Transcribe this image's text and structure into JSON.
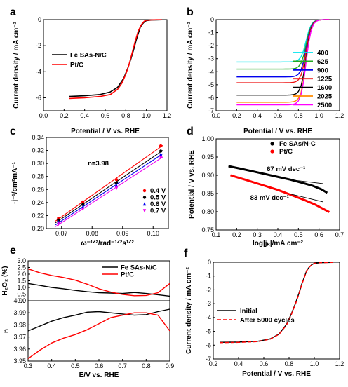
{
  "chart_data": [
    {
      "panel": "a",
      "type": "line",
      "xlabel": "Potential / V vs. RHE",
      "ylabel": "Current density / mA cm⁻²",
      "xlim": [
        0.0,
        1.2
      ],
      "ylim": [
        -7,
        0
      ],
      "xticks": [
        0.0,
        0.2,
        0.4,
        0.6,
        0.8,
        1.0,
        1.2
      ],
      "yticks": [
        -6,
        -4,
        -2,
        0
      ],
      "legend_position": "upper-left",
      "series": [
        {
          "name": "Fe SAs-N/C",
          "color": "#000000",
          "x": [
            0.25,
            0.4,
            0.55,
            0.65,
            0.72,
            0.78,
            0.82,
            0.85,
            0.88,
            0.9,
            0.92,
            0.94,
            0.96,
            0.98,
            1.0,
            1.05,
            1.1,
            1.15
          ],
          "y": [
            -5.9,
            -5.85,
            -5.75,
            -5.55,
            -5.2,
            -4.5,
            -3.7,
            -3.0,
            -2.2,
            -1.6,
            -1.1,
            -0.6,
            -0.35,
            -0.18,
            -0.08,
            -0.03,
            -0.02,
            -0.01
          ]
        },
        {
          "name": "Pt/C",
          "color": "#ff0000",
          "x": [
            0.25,
            0.4,
            0.55,
            0.65,
            0.72,
            0.76,
            0.8,
            0.83,
            0.86,
            0.89,
            0.92,
            0.95,
            0.98,
            1.0,
            1.05,
            1.1,
            1.15
          ],
          "y": [
            -6.05,
            -6.0,
            -5.9,
            -5.75,
            -5.35,
            -4.9,
            -4.2,
            -3.5,
            -2.6,
            -1.7,
            -0.9,
            -0.4,
            -0.12,
            -0.05,
            -0.02,
            -0.01,
            -0.01
          ]
        }
      ]
    },
    {
      "panel": "b",
      "type": "line",
      "xlabel": "Potential / V vs. RHE",
      "ylabel": "Current density / mA cm⁻²",
      "xlim": [
        0.0,
        1.2
      ],
      "ylim": [
        -7,
        0
      ],
      "xticks": [
        0.0,
        0.2,
        0.4,
        0.6,
        0.8,
        1.0,
        1.2
      ],
      "yticks": [
        -7,
        -6,
        -5,
        -4,
        -3,
        -2,
        -1,
        0
      ],
      "legend_position": "right",
      "series": [
        {
          "name": "400",
          "color": "#00e5ee",
          "limit": -3.25
        },
        {
          "name": "625",
          "color": "#22aa22",
          "limit": -3.8
        },
        {
          "name": "900",
          "color": "#0000ee",
          "limit": -4.4
        },
        {
          "name": "1225",
          "color": "#ee1111",
          "limit": -4.85
        },
        {
          "name": "1600",
          "color": "#000000",
          "limit": -5.8
        },
        {
          "name": "2025",
          "color": "#ff8c00",
          "limit": -6.35
        },
        {
          "name": "2500",
          "color": "#ff00ff",
          "limit": -6.55
        }
      ]
    },
    {
      "panel": "c",
      "type": "scatter",
      "xlabel": "ω⁻¹ᐟ²/rad⁻¹ᐟ²s¹ᐟ²",
      "ylabel": "-j⁻¹/cm²mA⁻¹",
      "xlim": [
        0.065,
        0.105
      ],
      "ylim": [
        0.2,
        0.34
      ],
      "xticks": [
        0.07,
        0.08,
        0.09,
        0.1
      ],
      "yticks": [
        0.2,
        0.22,
        0.24,
        0.26,
        0.28,
        0.3,
        0.32,
        0.34
      ],
      "x": [
        0.069,
        0.077,
        0.088,
        0.1025
      ],
      "annotation": "n=3.98",
      "legend_position": "lower-right",
      "series": [
        {
          "name": "0.4 V",
          "color": "#ff0000",
          "marker": "circle",
          "y": [
            0.216,
            0.241,
            0.275,
            0.327
          ]
        },
        {
          "name": "0.5 V",
          "color": "#000000",
          "marker": "circle",
          "y": [
            0.213,
            0.237,
            0.27,
            0.319
          ]
        },
        {
          "name": "0.6 V",
          "color": "#0000ee",
          "marker": "triangle",
          "y": [
            0.21,
            0.233,
            0.266,
            0.314
          ]
        },
        {
          "name": "0.7 V",
          "color": "#ee00ee",
          "marker": "triangle-down",
          "y": [
            0.207,
            0.23,
            0.262,
            0.309
          ]
        }
      ]
    },
    {
      "panel": "d",
      "type": "line",
      "xlabel": "log|jₖ|/mA cm⁻²",
      "ylabel": "Potential / V vs. RHE",
      "xlim": [
        0.1,
        0.7
      ],
      "ylim": [
        0.75,
        1.0
      ],
      "xticks": [
        0.1,
        0.2,
        0.3,
        0.4,
        0.5,
        0.6,
        0.7
      ],
      "yticks": [
        0.75,
        0.8,
        0.85,
        0.9,
        0.95,
        1.0
      ],
      "legend_position": "upper-right",
      "annotations": [
        "67 mV dec⁻¹",
        "83 mV dec⁻¹"
      ],
      "series": [
        {
          "name": "Fe SAs/N-C",
          "color": "#000000",
          "x": [
            0.16,
            0.22,
            0.3,
            0.38,
            0.46,
            0.52,
            0.57,
            0.61,
            0.64
          ],
          "y": [
            0.925,
            0.918,
            0.908,
            0.898,
            0.888,
            0.879,
            0.871,
            0.862,
            0.852
          ]
        },
        {
          "name": "Pt/C",
          "color": "#ff0000",
          "x": [
            0.17,
            0.24,
            0.32,
            0.4,
            0.47,
            0.53,
            0.58,
            0.62,
            0.65
          ],
          "y": [
            0.9,
            0.888,
            0.874,
            0.86,
            0.845,
            0.832,
            0.82,
            0.808,
            0.799
          ]
        }
      ]
    },
    {
      "panel": "e",
      "type": "line",
      "xlabel": "E/V vs. RHE",
      "ylabel_top": "H₂O₂ (%)",
      "ylabel_bottom": "n",
      "xlim": [
        0.3,
        0.9
      ],
      "ylim_top": [
        0.0,
        3.0
      ],
      "ylim_bottom": [
        3.95,
        4.0
      ],
      "xticks": [
        0.3,
        0.4,
        0.5,
        0.6,
        0.7,
        0.8,
        0.9
      ],
      "yticks_top": [
        0.0,
        0.5,
        1.0,
        1.5,
        2.0,
        2.5,
        3.0
      ],
      "yticks_bottom": [
        3.95,
        3.96,
        3.97,
        3.98,
        3.99,
        4.0
      ],
      "legend_position": "upper-right",
      "series": [
        {
          "name": "Fe SAs-N/C",
          "color": "#000000",
          "x": [
            0.3,
            0.35,
            0.4,
            0.45,
            0.5,
            0.55,
            0.6,
            0.65,
            0.7,
            0.75,
            0.8,
            0.85,
            0.9
          ],
          "h2o2": [
            1.3,
            1.15,
            1.0,
            0.9,
            0.78,
            0.68,
            0.6,
            0.58,
            0.55,
            0.62,
            0.55,
            0.45,
            0.35
          ],
          "n": [
            3.975,
            3.979,
            3.983,
            3.986,
            3.988,
            3.9905,
            3.991,
            3.99,
            3.989,
            3.988,
            3.9885,
            3.991,
            3.993
          ]
        },
        {
          "name": "Pt/C",
          "color": "#ff0000",
          "x": [
            0.3,
            0.35,
            0.4,
            0.45,
            0.5,
            0.55,
            0.6,
            0.65,
            0.7,
            0.75,
            0.8,
            0.85,
            0.9
          ],
          "h2o2": [
            2.4,
            2.1,
            1.9,
            1.75,
            1.55,
            1.25,
            0.9,
            0.65,
            0.48,
            0.38,
            0.4,
            0.6,
            1.3
          ],
          "n": [
            3.952,
            3.959,
            3.965,
            3.969,
            3.972,
            3.976,
            3.981,
            3.986,
            3.988,
            3.99,
            3.99,
            3.988,
            3.975
          ]
        }
      ]
    },
    {
      "panel": "f",
      "type": "line",
      "xlabel": "Potential / V vs. RHE",
      "ylabel": "Current density / mA cm⁻²",
      "xlim": [
        0.2,
        1.2
      ],
      "ylim": [
        -7,
        0
      ],
      "xticks": [
        0.2,
        0.4,
        0.6,
        0.8,
        1.0,
        1.2
      ],
      "yticks": [
        -7,
        -6,
        -5,
        -4,
        -3,
        -2,
        -1,
        0
      ],
      "legend_position": "center-left",
      "series": [
        {
          "name": "Initial",
          "color": "#000000",
          "dash": false,
          "x": [
            0.25,
            0.4,
            0.55,
            0.65,
            0.72,
            0.78,
            0.82,
            0.85,
            0.88,
            0.9,
            0.92,
            0.94,
            0.96,
            0.98,
            1.0,
            1.05,
            1.1,
            1.15
          ],
          "y": [
            -5.8,
            -5.78,
            -5.72,
            -5.55,
            -5.2,
            -4.5,
            -3.7,
            -3.0,
            -2.2,
            -1.6,
            -1.1,
            -0.6,
            -0.35,
            -0.18,
            -0.08,
            -0.03,
            -0.02,
            -0.01
          ]
        },
        {
          "name": "After 5000 cycles",
          "color": "#ff0000",
          "dash": true,
          "x": [
            0.25,
            0.4,
            0.55,
            0.65,
            0.72,
            0.78,
            0.82,
            0.85,
            0.88,
            0.9,
            0.92,
            0.94,
            0.96,
            0.98,
            1.0,
            1.05,
            1.1,
            1.15
          ],
          "y": [
            -5.82,
            -5.8,
            -5.74,
            -5.57,
            -5.22,
            -4.55,
            -3.75,
            -3.05,
            -2.25,
            -1.65,
            -1.12,
            -0.62,
            -0.36,
            -0.18,
            -0.08,
            -0.03,
            -0.02,
            -0.01
          ]
        }
      ]
    }
  ]
}
